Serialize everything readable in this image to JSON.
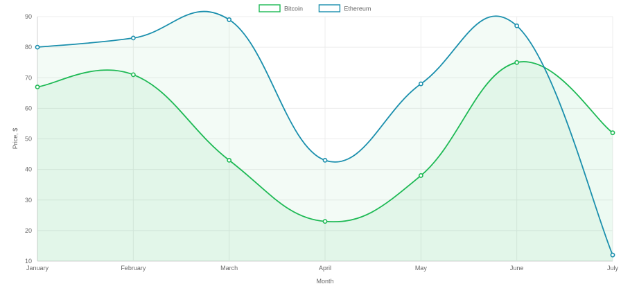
{
  "chart_data": {
    "type": "line",
    "categories": [
      "January",
      "February",
      "March",
      "April",
      "May",
      "June",
      "July"
    ],
    "series": [
      {
        "name": "Bitcoin",
        "values": [
          67,
          71,
          43,
          23,
          38,
          75,
          52
        ],
        "color": "#1db954",
        "fill": "rgba(29, 185, 84, 0.08)"
      },
      {
        "name": "Ethereum",
        "values": [
          80,
          83,
          89,
          43,
          68,
          87,
          12
        ],
        "color": "#1a8fad",
        "fill": "rgba(29, 185, 84, 0.05)"
      }
    ],
    "xlabel": "Month",
    "ylabel": "Price, $",
    "ylim": [
      10,
      90
    ],
    "yticks": [
      10,
      20,
      30,
      40,
      50,
      60,
      70,
      80,
      90
    ],
    "grid": true,
    "legend": "top-center",
    "curve": "smooth"
  }
}
